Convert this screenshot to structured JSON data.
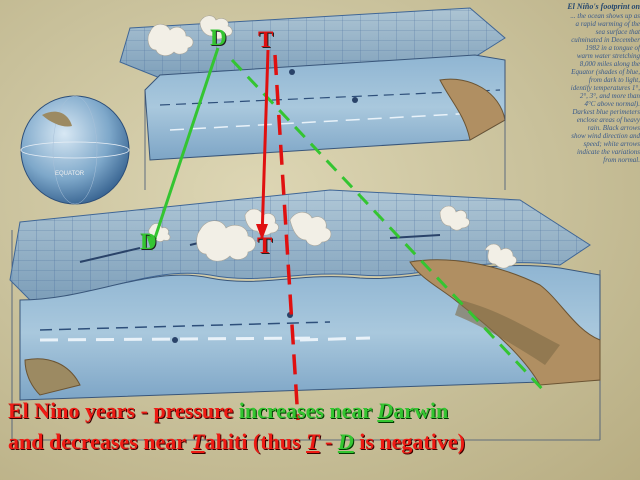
{
  "side_panel": {
    "title": "El Niño's footprint on",
    "lines": [
      "... the ocean shows up as",
      "a rapid warming of the",
      "sea surface that",
      "culminated in December",
      "1982 in a tongue of",
      "warm water stretching",
      "8,000 miles along the",
      "Equator (shades of blue,",
      "from dark to light,",
      "identify temperatures 1°,",
      "2°, 3°, and more than",
      "4°C above normal).",
      "Darkest blue perimeters",
      "enclose areas of heavy",
      "rain. Black arrows",
      "show wind direction and",
      "speed; white arrows",
      "indicate the variations",
      "from normal."
    ]
  },
  "globe": {
    "equator_label": "EQUATOR"
  },
  "markers": {
    "darwin_top": "D",
    "tahiti_top": "T",
    "darwin_bottom": "D",
    "tahiti_bottom": "T"
  },
  "caption": {
    "line1_prefix": "El Nino years - pressure ",
    "line1_increases": "increases near ",
    "line1_D": "D",
    "line1_arwin": "arwin",
    "line2_prefix": "and decreases near ",
    "line2_T": "T",
    "line2_ahiti": "ahiti (thus ",
    "line2_T2": "T",
    "line2_dash": " - ",
    "line2_D": "D",
    "line2_suffix": " is negative)"
  },
  "colors": {
    "darwin": "#34c531",
    "tahiti": "#e01010",
    "grid": "#5a7fb0",
    "ocean": "#7aa5c8"
  }
}
